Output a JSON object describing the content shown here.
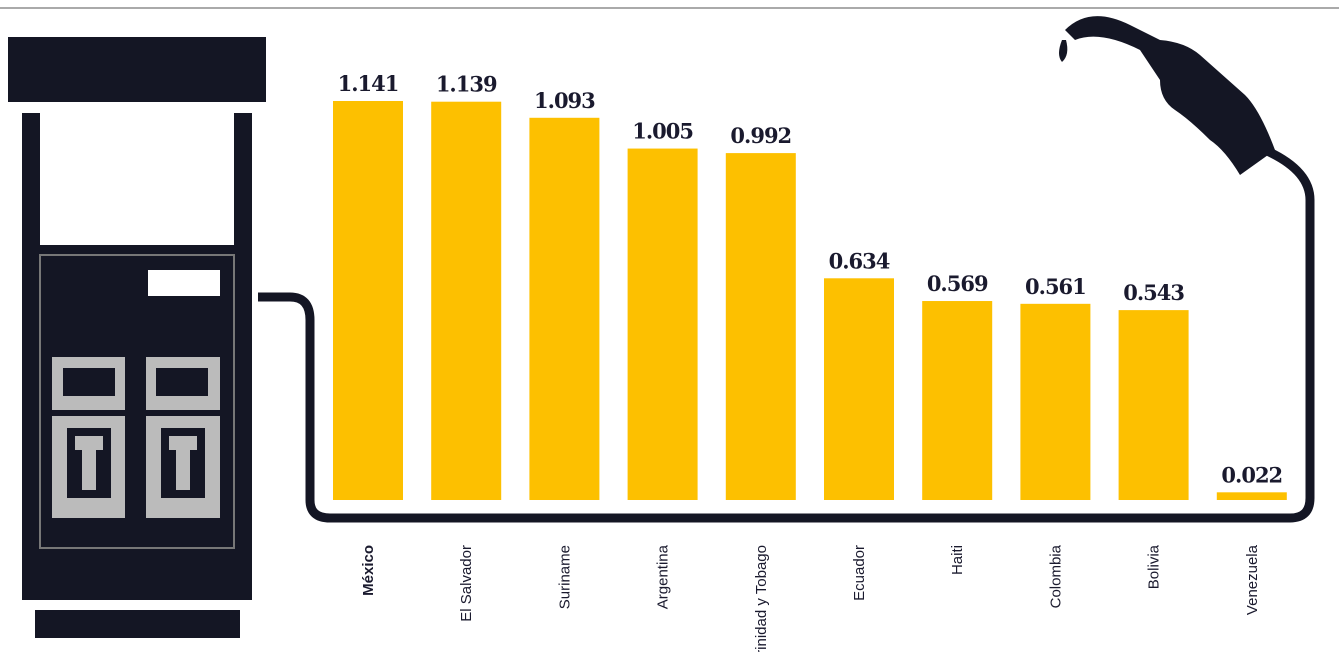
{
  "chart_data": {
    "type": "bar",
    "categories": [
      "México",
      "El Salvador",
      "Suriname",
      "Argentina",
      "Trinidad y Tobago",
      "Ecuador",
      "Haiti",
      "Colombia",
      "Bolivia",
      "Venezuela"
    ],
    "values": [
      1.141,
      1.139,
      1.093,
      1.005,
      0.992,
      0.634,
      0.569,
      0.561,
      0.543,
      0.022
    ],
    "color": "#fdc000"
  }
}
